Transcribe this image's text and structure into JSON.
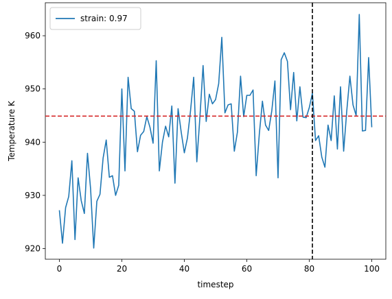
{
  "chart_data": {
    "type": "line",
    "xlabel": "timestep",
    "ylabel": "Temperature K",
    "xlim": [
      -4.5,
      104.5
    ],
    "ylim": [
      918.0,
      966.2
    ],
    "xticks": [
      0,
      20,
      40,
      60,
      80,
      100
    ],
    "yticks": [
      920,
      930,
      940,
      950,
      960
    ],
    "grid": false,
    "legend_placement": "top-left",
    "series": [
      {
        "name": "strain: 0.97",
        "color": "#1f77b4",
        "x": [
          0,
          1,
          2,
          3,
          4,
          5,
          6,
          7,
          8,
          9,
          10,
          11,
          12,
          13,
          14,
          15,
          16,
          17,
          18,
          19,
          20,
          21,
          22,
          23,
          24,
          25,
          26,
          27,
          28,
          29,
          30,
          31,
          32,
          33,
          34,
          35,
          36,
          37,
          38,
          39,
          40,
          41,
          42,
          43,
          44,
          45,
          46,
          47,
          48,
          49,
          50,
          51,
          52,
          53,
          54,
          55,
          56,
          57,
          58,
          59,
          60,
          61,
          62,
          63,
          64,
          65,
          66,
          67,
          68,
          69,
          70,
          71,
          72,
          73,
          74,
          75,
          76,
          77,
          78,
          79,
          80,
          81,
          82,
          83,
          84,
          85,
          86,
          87,
          88,
          89,
          90,
          91,
          92,
          93,
          94,
          95,
          96,
          97,
          98,
          99,
          100
        ],
        "values": [
          927.2,
          921.0,
          927.7,
          929.8,
          936.5,
          921.7,
          933.3,
          929.0,
          926.6,
          937.9,
          931.2,
          920.1,
          928.9,
          930.2,
          937.0,
          940.4,
          933.4,
          933.7,
          930.0,
          931.9,
          950.0,
          934.6,
          952.2,
          946.3,
          945.8,
          938.2,
          941.3,
          942.0,
          944.8,
          942.8,
          939.8,
          955.3,
          934.6,
          940.0,
          943.0,
          941.0,
          946.8,
          932.3,
          946.3,
          941.9,
          938.0,
          940.8,
          946.0,
          952.2,
          936.3,
          944.8,
          954.4,
          943.9,
          949.0,
          947.2,
          948.0,
          951.0,
          959.7,
          945.5,
          947.0,
          947.2,
          938.3,
          941.9,
          952.4,
          944.8,
          948.8,
          948.8,
          949.8,
          933.7,
          941.5,
          947.7,
          943.2,
          942.2,
          945.9,
          951.5,
          933.3,
          955.5,
          956.8,
          955.2,
          946.1,
          953.1,
          944.0,
          950.4,
          944.7,
          944.6,
          946.5,
          949.2,
          940.3,
          941.2,
          937.2,
          935.3,
          943.2,
          940.3,
          948.7,
          938.7,
          950.4,
          938.3,
          945.9,
          952.4,
          947.0,
          945.0,
          964.0,
          942.1,
          942.2,
          955.9,
          942.8
        ]
      }
    ],
    "hlines": [
      {
        "y": 944.9,
        "color": "#d62728",
        "style": "dashed"
      }
    ],
    "vlines": [
      {
        "x": 81,
        "color": "#000000",
        "style": "dashed"
      }
    ]
  }
}
